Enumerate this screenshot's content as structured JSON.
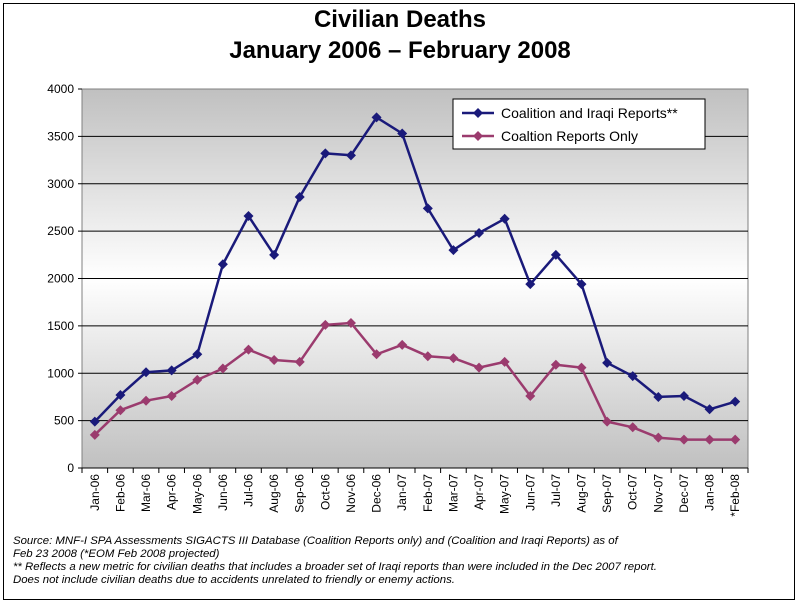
{
  "title_line1": "Civilian Deaths",
  "title_line2": "January 2006 – February 2008",
  "chart_data": {
    "type": "line",
    "title": "Civilian Deaths January 2006 – February 2008",
    "xlabel": "",
    "ylabel": "",
    "categories": [
      "Jan-06",
      "Feb-06",
      "Mar-06",
      "Apr-06",
      "May-06",
      "Jun-06",
      "Jul-06",
      "Aug-06",
      "Sep-06",
      "Oct-06",
      "Nov-06",
      "Dec-06",
      "Jan-07",
      "Feb-07",
      "Mar-07",
      "Apr-07",
      "May-07",
      "Jun-07",
      "Jul-07",
      "Aug-07",
      "Sep-07",
      "Oct-07",
      "Nov-07",
      "Dec-07",
      "Jan-08",
      "*Feb-08"
    ],
    "ylim": [
      0,
      4000
    ],
    "yticks": [
      0,
      500,
      1000,
      1500,
      2000,
      2500,
      3000,
      3500,
      4000
    ],
    "grid": true,
    "legend_position": "top-right",
    "series": [
      {
        "name": "Coalition and Iraqi Reports**",
        "color": "#1a1a7a",
        "values": [
          490,
          770,
          1010,
          1030,
          1200,
          2150,
          2660,
          2250,
          2860,
          3320,
          3300,
          3700,
          3530,
          2740,
          2300,
          2480,
          2630,
          1940,
          2250,
          1940,
          1110,
          970,
          750,
          760,
          620,
          700
        ]
      },
      {
        "name": "Coaltion Reports Only",
        "color": "#9b3b6e",
        "values": [
          350,
          610,
          710,
          760,
          930,
          1050,
          1250,
          1140,
          1120,
          1510,
          1530,
          1200,
          1300,
          1180,
          1160,
          1060,
          1120,
          760,
          1090,
          1060,
          490,
          430,
          320,
          300,
          300,
          300
        ]
      }
    ]
  },
  "source_lines": [
    "Source:  MNF-I SPA Assessments SIGACTS III Database (Coalition Reports only) and (Coalition and Iraqi Reports) as of",
    "Feb 23 2008   (*EOM Feb 2008 projected)",
    "** Reflects a new metric for civilian deaths that includes a broader set of Iraqi reports than were included in the Dec 2007 report.",
    "Does not include civilian deaths due to accidents unrelated to friendly or enemy actions."
  ]
}
